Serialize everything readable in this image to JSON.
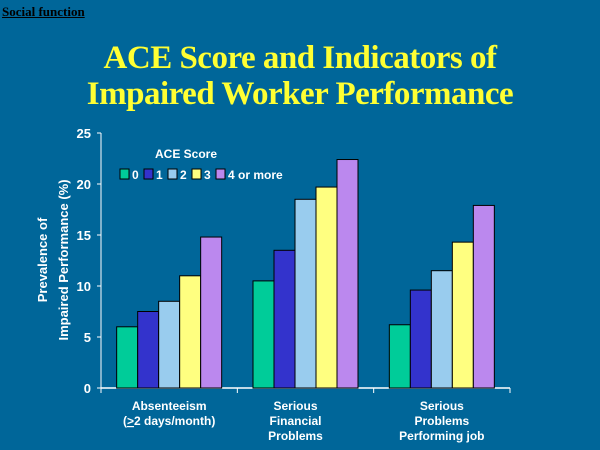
{
  "header": "Social function",
  "title_line1": "ACE Score and Indicators of",
  "title_line2": "Impaired Worker Performance",
  "colors": {
    "background": "#006699",
    "title": "#ffff33"
  },
  "chart_data": {
    "type": "bar",
    "ylabel_line1": "Prevalence of",
    "ylabel_line2": "Impaired Performance (%)",
    "ylim": [
      0,
      25
    ],
    "yticks": [
      0,
      5,
      10,
      15,
      20,
      25
    ],
    "legend_title": "ACE Score",
    "legend_placement": "top-left",
    "grid": false,
    "categories": [
      [
        "Absenteeism",
        "(>2 days/month)"
      ],
      [
        "Serious",
        "Financial",
        "Problems"
      ],
      [
        "Serious",
        "Problems",
        "Performing job"
      ]
    ],
    "series": [
      {
        "name": "0",
        "color": "#00cc99",
        "values": [
          6.0,
          10.5,
          6.2
        ]
      },
      {
        "name": "1",
        "color": "#3333cc",
        "values": [
          7.5,
          13.5,
          9.6
        ]
      },
      {
        "name": "2",
        "color": "#99ccee",
        "values": [
          8.5,
          18.5,
          11.5
        ]
      },
      {
        "name": "3",
        "color": "#ffff80",
        "values": [
          11.0,
          19.7,
          14.3
        ]
      },
      {
        "name": "4 or more",
        "color": "#bb88ee",
        "values": [
          14.8,
          22.4,
          17.9
        ]
      }
    ]
  }
}
